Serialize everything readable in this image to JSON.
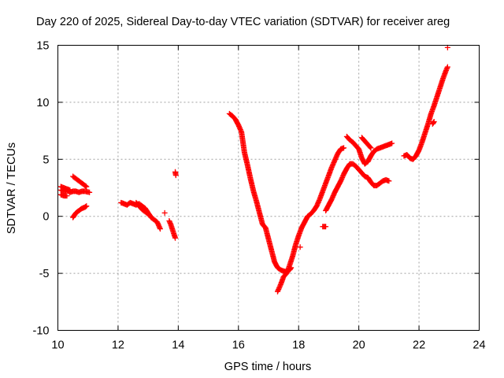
{
  "chart_data": {
    "type": "scatter",
    "title": "Day 220 of 2025, Sidereal Day-to-day VTEC variation (SDTVAR) for receiver areg",
    "xlabel": "GPS time / hours",
    "ylabel": "SDTVAR / TECUs",
    "xlim": [
      10,
      24
    ],
    "ylim": [
      -10,
      15
    ],
    "xticks": [
      10,
      12,
      14,
      16,
      18,
      20,
      22,
      24
    ],
    "yticks": [
      -10,
      -5,
      0,
      5,
      10,
      15
    ],
    "grid": true,
    "marker": "+",
    "marker_color": "#ff0000",
    "series": [
      {
        "segments": [
          [
            [
              10.1,
              2.3
            ],
            [
              10.2,
              2.2
            ],
            [
              10.3,
              2.3
            ],
            [
              10.4,
              2.1
            ],
            [
              10.5,
              2.2
            ],
            [
              10.6,
              2.2
            ],
            [
              10.7,
              2.1
            ],
            [
              10.8,
              2.2
            ],
            [
              10.9,
              2.2
            ],
            [
              11.05,
              2.1
            ]
          ],
          [
            [
              10.1,
              2.6
            ],
            [
              10.2,
              2.5
            ],
            [
              10.3,
              2.4
            ],
            [
              10.4,
              2.3
            ]
          ],
          [
            [
              10.1,
              1.9
            ],
            [
              10.2,
              1.8
            ],
            [
              10.3,
              1.8
            ]
          ],
          [
            [
              10.5,
              3.5
            ],
            [
              10.6,
              3.3
            ],
            [
              10.7,
              3.1
            ],
            [
              10.8,
              2.9
            ],
            [
              10.9,
              2.7
            ],
            [
              10.95,
              2.6
            ]
          ],
          [
            [
              10.5,
              -0.1
            ],
            [
              10.6,
              0.3
            ],
            [
              10.7,
              0.5
            ],
            [
              10.8,
              0.7
            ],
            [
              10.9,
              0.8
            ],
            [
              10.95,
              0.9
            ]
          ],
          [
            [
              12.1,
              1.2
            ],
            [
              12.2,
              1.1
            ],
            [
              12.3,
              1.0
            ],
            [
              12.4,
              1.2
            ],
            [
              12.5,
              1.1
            ],
            [
              12.6,
              1.0
            ],
            [
              12.7,
              1.1
            ],
            [
              12.8,
              0.9
            ],
            [
              12.9,
              0.7
            ],
            [
              13.0,
              0.3
            ],
            [
              13.1,
              -0.1
            ],
            [
              13.2,
              -0.3
            ],
            [
              13.3,
              -0.5
            ],
            [
              13.4,
              -1.1
            ]
          ],
          [
            [
              12.6,
              1.2
            ],
            [
              12.8,
              0.6
            ],
            [
              13.0,
              0.2
            ]
          ],
          [
            [
              13.55,
              0.3
            ]
          ],
          [
            [
              13.7,
              -0.4
            ],
            [
              13.75,
              -0.7
            ],
            [
              13.8,
              -1.1
            ],
            [
              13.85,
              -1.5
            ],
            [
              13.9,
              -1.9
            ]
          ],
          [
            [
              13.9,
              3.9
            ],
            [
              13.92,
              3.6
            ]
          ],
          [
            [
              15.7,
              9.0
            ],
            [
              15.8,
              8.8
            ],
            [
              15.9,
              8.5
            ],
            [
              16.0,
              8.0
            ],
            [
              16.1,
              7.4
            ],
            [
              16.2,
              5.6
            ],
            [
              16.3,
              4.5
            ],
            [
              16.4,
              3.3
            ],
            [
              16.5,
              2.2
            ],
            [
              16.6,
              1.3
            ],
            [
              16.7,
              0.3
            ],
            [
              16.8,
              -0.7
            ],
            [
              16.9,
              -1.0
            ],
            [
              17.0,
              -2.0
            ],
            [
              17.1,
              -3.0
            ],
            [
              17.2,
              -4.0
            ],
            [
              17.3,
              -4.5
            ],
            [
              17.4,
              -4.7
            ],
            [
              17.5,
              -4.8
            ],
            [
              17.6,
              -4.9
            ],
            [
              17.7,
              -4.7
            ],
            [
              17.75,
              -4.5
            ]
          ],
          [
            [
              17.3,
              -6.6
            ],
            [
              17.4,
              -6.0
            ],
            [
              17.5,
              -5.3
            ],
            [
              17.6,
              -5.0
            ],
            [
              17.7,
              -4.3
            ],
            [
              17.8,
              -3.5
            ],
            [
              17.9,
              -2.5
            ],
            [
              18.0,
              -1.7
            ],
            [
              18.1,
              -1.0
            ],
            [
              18.2,
              -0.5
            ],
            [
              18.3,
              0.0
            ],
            [
              18.4,
              0.2
            ],
            [
              18.5,
              0.5
            ],
            [
              18.6,
              0.9
            ],
            [
              18.7,
              1.5
            ],
            [
              18.8,
              2.2
            ],
            [
              18.9,
              2.9
            ],
            [
              19.0,
              3.6
            ],
            [
              19.1,
              4.3
            ],
            [
              19.2,
              4.9
            ],
            [
              19.3,
              5.5
            ],
            [
              19.4,
              5.9
            ],
            [
              19.5,
              6.0
            ]
          ],
          [
            [
              18.05,
              -2.7
            ]
          ],
          [
            [
              18.8,
              -0.9
            ],
            [
              18.9,
              -0.9
            ]
          ],
          [
            [
              18.9,
              0.5
            ],
            [
              19.0,
              1.0
            ],
            [
              19.1,
              1.5
            ],
            [
              19.2,
              2.1
            ],
            [
              19.3,
              2.6
            ],
            [
              19.4,
              3.1
            ],
            [
              19.5,
              3.7
            ],
            [
              19.6,
              4.2
            ],
            [
              19.7,
              4.6
            ],
            [
              19.8,
              4.6
            ],
            [
              19.9,
              4.4
            ],
            [
              20.0,
              4.1
            ],
            [
              20.1,
              3.8
            ],
            [
              20.2,
              3.5
            ],
            [
              20.3,
              3.4
            ],
            [
              20.4,
              3.0
            ],
            [
              20.5,
              2.7
            ],
            [
              20.6,
              2.7
            ],
            [
              20.7,
              2.9
            ],
            [
              20.8,
              3.1
            ],
            [
              20.9,
              3.2
            ],
            [
              21.0,
              3.1
            ]
          ],
          [
            [
              19.6,
              7.0
            ],
            [
              19.7,
              6.7
            ],
            [
              19.8,
              6.5
            ],
            [
              19.9,
              6.2
            ],
            [
              20.0,
              5.9
            ],
            [
              20.1,
              5.1
            ],
            [
              20.2,
              4.6
            ],
            [
              20.3,
              4.8
            ],
            [
              20.4,
              5.3
            ],
            [
              20.5,
              5.7
            ],
            [
              20.6,
              5.9
            ],
            [
              20.7,
              6.0
            ],
            [
              20.8,
              6.1
            ],
            [
              20.9,
              6.2
            ],
            [
              21.0,
              6.3
            ],
            [
              21.1,
              6.4
            ]
          ],
          [
            [
              20.1,
              6.9
            ],
            [
              20.2,
              6.6
            ],
            [
              20.3,
              6.3
            ],
            [
              20.4,
              6.0
            ]
          ],
          [
            [
              21.5,
              5.3
            ],
            [
              21.6,
              5.4
            ],
            [
              21.7,
              5.1
            ],
            [
              21.8,
              5.0
            ],
            [
              21.9,
              5.3
            ],
            [
              22.0,
              5.8
            ],
            [
              22.1,
              6.5
            ],
            [
              22.2,
              7.3
            ],
            [
              22.3,
              8.1
            ],
            [
              22.4,
              9.0
            ],
            [
              22.5,
              9.7
            ],
            [
              22.6,
              10.5
            ],
            [
              22.7,
              11.3
            ],
            [
              22.8,
              12.1
            ],
            [
              22.9,
              12.8
            ],
            [
              22.95,
              13.1
            ]
          ],
          [
            [
              22.45,
              8.1
            ],
            [
              22.5,
              8.3
            ]
          ],
          [
            [
              22.95,
              14.8
            ]
          ]
        ]
      }
    ]
  }
}
